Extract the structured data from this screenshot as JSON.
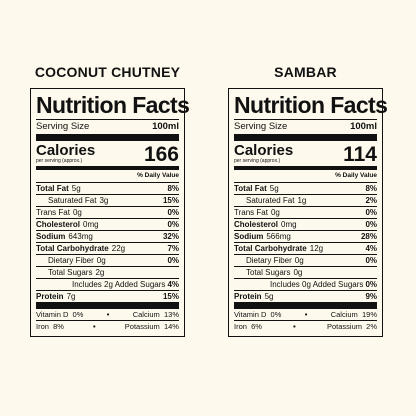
{
  "labels": [
    {
      "product": "COCONUT CHUTNEY",
      "title": "Nutrition Facts",
      "serving_label": "Serving Size",
      "serving_value": "100ml",
      "calories_label": "Calories",
      "calories_sub": "per serving (approx.)",
      "calories_value": "166",
      "dv_header": "% Daily Value",
      "total_fat": {
        "label": "Total Fat",
        "amount": "5g",
        "dv": "8%"
      },
      "sat_fat": {
        "label": "Saturated Fat",
        "amount": "3g",
        "dv": "15%"
      },
      "trans_fat": {
        "label": "Trans Fat",
        "amount": "0g",
        "dv": "0%"
      },
      "cholesterol": {
        "label": "Cholesterol",
        "amount": "0mg",
        "dv": "0%"
      },
      "sodium": {
        "label": "Sodium",
        "amount": "643mg",
        "dv": "32%"
      },
      "carbs": {
        "label": "Total Carbohydrate",
        "amount": "22g",
        "dv": "7%"
      },
      "fiber": {
        "label": "Dietary Fiber",
        "amount": "0g",
        "dv": "0%"
      },
      "sugars": {
        "label": "Total Sugars",
        "amount": "2g"
      },
      "added_sugars": {
        "label": "Includes 2g Added Sugars",
        "dv": "4%"
      },
      "protein": {
        "label": "Protein",
        "amount": "7g",
        "dv": "15%"
      },
      "vitd": {
        "label": "Vitamin D",
        "dv": "0%"
      },
      "calcium": {
        "label": "Calcium",
        "dv": "13%"
      },
      "iron": {
        "label": "Iron",
        "dv": "8%"
      },
      "potassium": {
        "label": "Potassium",
        "dv": "14%"
      },
      "dot": "•"
    },
    {
      "product": "SAMBAR",
      "title": "Nutrition Facts",
      "serving_label": "Serving Size",
      "serving_value": "100ml",
      "calories_label": "Calories",
      "calories_sub": "per serving (approx.)",
      "calories_value": "114",
      "dv_header": "% Daily Value",
      "total_fat": {
        "label": "Total Fat",
        "amount": "5g",
        "dv": "8%"
      },
      "sat_fat": {
        "label": "Saturated Fat",
        "amount": "1g",
        "dv": "2%"
      },
      "trans_fat": {
        "label": "Trans Fat",
        "amount": "0g",
        "dv": "0%"
      },
      "cholesterol": {
        "label": "Cholesterol",
        "amount": "0mg",
        "dv": "0%"
      },
      "sodium": {
        "label": "Sodium",
        "amount": "566mg",
        "dv": "28%"
      },
      "carbs": {
        "label": "Total Carbohydrate",
        "amount": "12g",
        "dv": "4%"
      },
      "fiber": {
        "label": "Dietary Fiber",
        "amount": "0g",
        "dv": "0%"
      },
      "sugars": {
        "label": "Total Sugars",
        "amount": "0g"
      },
      "added_sugars": {
        "label": "Includes 0g Added Sugars",
        "dv": "0%"
      },
      "protein": {
        "label": "Protein",
        "amount": "5g",
        "dv": "9%"
      },
      "vitd": {
        "label": "Vitamin D",
        "dv": "0%"
      },
      "calcium": {
        "label": "Calcium",
        "dv": "19%"
      },
      "iron": {
        "label": "Iron",
        "dv": "6%"
      },
      "potassium": {
        "label": "Potassium",
        "dv": "2%"
      },
      "dot": "•"
    }
  ]
}
